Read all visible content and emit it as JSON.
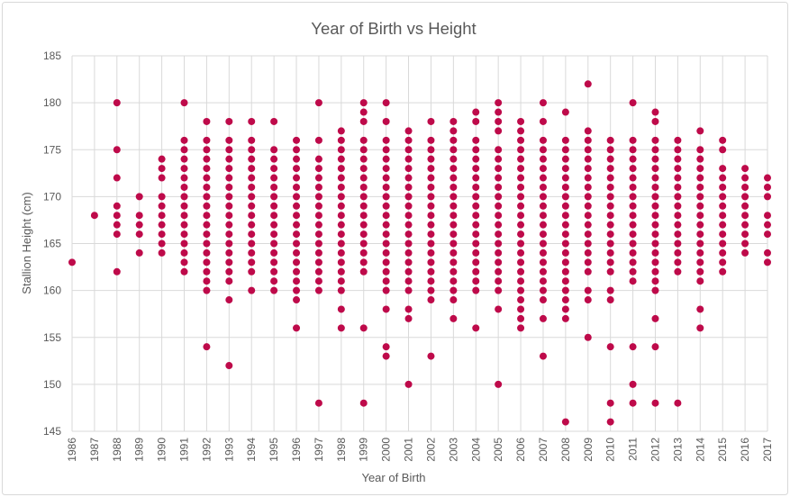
{
  "chart_data": {
    "type": "scatter",
    "title": "Year of Birth vs Height",
    "xlabel": "Year of Birth",
    "ylabel": "Stallion Height (cm)",
    "xlim": [
      1986,
      2017
    ],
    "ylim": [
      145,
      185
    ],
    "yticks": [
      145,
      150,
      155,
      160,
      165,
      170,
      175,
      180,
      185
    ],
    "xticks": [
      1986,
      1987,
      1988,
      1989,
      1990,
      1991,
      1992,
      1993,
      1994,
      1995,
      1996,
      1997,
      1998,
      1999,
      2000,
      2001,
      2002,
      2003,
      2004,
      2005,
      2006,
      2007,
      2008,
      2009,
      2010,
      2011,
      2012,
      2013,
      2014,
      2015,
      2016,
      2017
    ],
    "grid": true,
    "legend": "none",
    "marker_color": "#BE0A4A",
    "points_by_year": [
      {
        "year": 1986,
        "heights": [
          163
        ]
      },
      {
        "year": 1987,
        "heights": [
          168
        ]
      },
      {
        "year": 1988,
        "heights": [
          180,
          175,
          172,
          169,
          168,
          167,
          166,
          162
        ]
      },
      {
        "year": 1989,
        "heights": [
          170,
          168,
          167,
          166,
          164
        ]
      },
      {
        "year": 1990,
        "heights": [
          174,
          173,
          172,
          170,
          169,
          168,
          167,
          166,
          165,
          164
        ]
      },
      {
        "year": 1991,
        "heights": [
          180,
          176,
          175,
          174,
          173,
          172,
          171,
          170,
          169,
          168,
          167,
          166,
          165,
          164,
          163,
          162
        ]
      },
      {
        "year": 1992,
        "heights": [
          178,
          176,
          175,
          174,
          173,
          172,
          171,
          170,
          169,
          168,
          167,
          166,
          165,
          164,
          163,
          162,
          161,
          160,
          154
        ]
      },
      {
        "year": 1993,
        "heights": [
          178,
          176,
          175,
          174,
          173,
          172,
          171,
          170,
          169,
          168,
          167,
          166,
          165,
          164,
          163,
          162,
          161,
          159,
          152
        ]
      },
      {
        "year": 1994,
        "heights": [
          178,
          176,
          175,
          174,
          173,
          172,
          171,
          170,
          169,
          168,
          167,
          166,
          165,
          164,
          163,
          162,
          160
        ]
      },
      {
        "year": 1995,
        "heights": [
          178,
          175,
          174,
          173,
          172,
          171,
          170,
          169,
          168,
          167,
          166,
          165,
          164,
          163,
          162,
          161,
          160
        ]
      },
      {
        "year": 1996,
        "heights": [
          176,
          175,
          174,
          173,
          172,
          171,
          170,
          169,
          168,
          167,
          166,
          165,
          164,
          163,
          162,
          161,
          160,
          159,
          156
        ]
      },
      {
        "year": 1997,
        "heights": [
          180,
          176,
          174,
          173,
          172,
          171,
          170,
          169,
          168,
          167,
          166,
          165,
          164,
          163,
          162,
          161,
          160,
          148
        ]
      },
      {
        "year": 1998,
        "heights": [
          177,
          176,
          175,
          174,
          173,
          172,
          171,
          170,
          169,
          168,
          167,
          166,
          165,
          164,
          163,
          162,
          161,
          160,
          158,
          156
        ]
      },
      {
        "year": 1999,
        "heights": [
          180,
          179,
          178,
          176,
          175,
          174,
          173,
          172,
          171,
          170,
          169,
          168,
          167,
          166,
          165,
          164,
          163,
          162,
          156,
          148
        ]
      },
      {
        "year": 2000,
        "heights": [
          180,
          178,
          176,
          175,
          174,
          173,
          172,
          171,
          170,
          169,
          168,
          167,
          166,
          165,
          164,
          163,
          162,
          161,
          160,
          158,
          154,
          153
        ]
      },
      {
        "year": 2001,
        "heights": [
          177,
          176,
          175,
          174,
          173,
          172,
          171,
          170,
          169,
          168,
          167,
          166,
          165,
          164,
          163,
          162,
          161,
          160,
          158,
          157,
          150
        ]
      },
      {
        "year": 2002,
        "heights": [
          178,
          176,
          175,
          174,
          173,
          172,
          171,
          170,
          169,
          168,
          167,
          166,
          165,
          164,
          163,
          162,
          161,
          160,
          159,
          153
        ]
      },
      {
        "year": 2003,
        "heights": [
          178,
          177,
          176,
          175,
          174,
          173,
          172,
          171,
          170,
          169,
          168,
          167,
          166,
          165,
          164,
          163,
          162,
          161,
          160,
          159,
          157
        ]
      },
      {
        "year": 2004,
        "heights": [
          179,
          178,
          176,
          175,
          174,
          173,
          172,
          171,
          170,
          169,
          168,
          167,
          166,
          165,
          164,
          163,
          162,
          161,
          160,
          156
        ]
      },
      {
        "year": 2005,
        "heights": [
          180,
          179,
          178,
          177,
          175,
          174,
          173,
          172,
          171,
          170,
          169,
          168,
          167,
          166,
          165,
          164,
          163,
          162,
          161,
          160,
          158,
          150
        ]
      },
      {
        "year": 2006,
        "heights": [
          178,
          177,
          176,
          175,
          174,
          173,
          172,
          171,
          170,
          169,
          168,
          167,
          166,
          165,
          164,
          163,
          162,
          161,
          160,
          159,
          158,
          157,
          156
        ]
      },
      {
        "year": 2007,
        "heights": [
          180,
          178,
          176,
          175,
          174,
          173,
          172,
          171,
          170,
          169,
          168,
          167,
          166,
          165,
          164,
          163,
          162,
          161,
          160,
          159,
          157,
          153
        ]
      },
      {
        "year": 2008,
        "heights": [
          179,
          176,
          175,
          174,
          173,
          172,
          171,
          170,
          169,
          168,
          167,
          166,
          165,
          164,
          163,
          162,
          161,
          160,
          159,
          158,
          157,
          146
        ]
      },
      {
        "year": 2009,
        "heights": [
          182,
          177,
          176,
          175,
          174,
          173,
          172,
          171,
          170,
          169,
          168,
          167,
          166,
          165,
          164,
          163,
          162,
          160,
          159,
          155
        ]
      },
      {
        "year": 2010,
        "heights": [
          176,
          175,
          174,
          173,
          172,
          171,
          170,
          169,
          168,
          167,
          166,
          165,
          164,
          163,
          162,
          160,
          159,
          154,
          148,
          146
        ]
      },
      {
        "year": 2011,
        "heights": [
          180,
          176,
          175,
          174,
          173,
          172,
          171,
          170,
          169,
          168,
          167,
          166,
          165,
          164,
          163,
          162,
          161,
          154,
          150,
          148
        ]
      },
      {
        "year": 2012,
        "heights": [
          179,
          178,
          176,
          175,
          174,
          173,
          172,
          171,
          170,
          169,
          168,
          167,
          166,
          165,
          164,
          163,
          162,
          161,
          160,
          157,
          154,
          148
        ]
      },
      {
        "year": 2013,
        "heights": [
          176,
          175,
          174,
          173,
          172,
          171,
          170,
          169,
          168,
          167,
          166,
          165,
          164,
          163,
          162,
          148
        ]
      },
      {
        "year": 2014,
        "heights": [
          177,
          175,
          174,
          173,
          172,
          171,
          170,
          169,
          168,
          167,
          166,
          165,
          164,
          163,
          162,
          161,
          158,
          156
        ]
      },
      {
        "year": 2015,
        "heights": [
          176,
          175,
          173,
          172,
          171,
          170,
          169,
          168,
          167,
          166,
          165,
          164,
          163,
          162
        ]
      },
      {
        "year": 2016,
        "heights": [
          173,
          172,
          171,
          170,
          169,
          168,
          167,
          166,
          165,
          164
        ]
      },
      {
        "year": 2017,
        "heights": [
          172,
          171,
          170,
          168,
          167,
          166,
          164,
          163
        ]
      }
    ]
  }
}
